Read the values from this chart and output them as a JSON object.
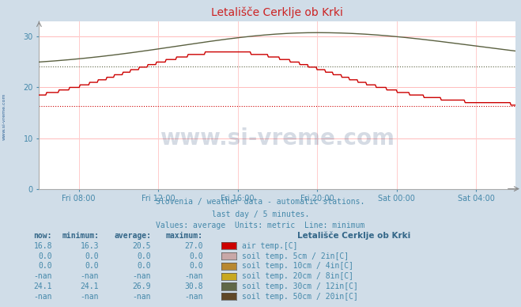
{
  "title": "Letališče Cerklje ob Krki",
  "background_color": "#d0dde8",
  "plot_bg_color": "#ffffff",
  "x_labels": [
    "Fri 08:00",
    "Fri 12:00",
    "Fri 16:00",
    "Fri 20:00",
    "Sat 00:00",
    "Sat 04:00"
  ],
  "y_ticks": [
    0,
    10,
    20,
    30
  ],
  "ylim": [
    0,
    33
  ],
  "xlim": [
    0,
    24
  ],
  "subtitle_lines": [
    "Slovenia / weather data - automatic stations.",
    "last day / 5 minutes.",
    "Values: average  Units: metric  Line: minimum"
  ],
  "legend_title": "Letališče Cerklje ob Krki",
  "legend_entries": [
    {
      "label": "air temp.[C]",
      "color": "#cc0000",
      "now": "16.8",
      "minimum": "16.3",
      "average": "20.5",
      "maximum": "27.0"
    },
    {
      "label": "soil temp. 5cm / 2in[C]",
      "color": "#c8a8a8",
      "now": "0.0",
      "minimum": "0.0",
      "average": "0.0",
      "maximum": "0.0"
    },
    {
      "label": "soil temp. 10cm / 4in[C]",
      "color": "#b88830",
      "now": "0.0",
      "minimum": "0.0",
      "average": "0.0",
      "maximum": "0.0"
    },
    {
      "label": "soil temp. 20cm / 8in[C]",
      "color": "#c8a820",
      "now": "-nan",
      "minimum": "-nan",
      "average": "-nan",
      "maximum": "-nan"
    },
    {
      "label": "soil temp. 30cm / 12in[C]",
      "color": "#606848",
      "now": "24.1",
      "minimum": "24.1",
      "average": "26.9",
      "maximum": "30.8"
    },
    {
      "label": "soil temp. 50cm / 20in[C]",
      "color": "#604828",
      "now": "-nan",
      "minimum": "-nan",
      "average": "-nan",
      "maximum": "-nan"
    }
  ],
  "air_temp_color": "#cc0000",
  "soil30_color": "#5a6040",
  "air_temp_min": 16.3,
  "soil30_min": 24.1,
  "watermark_text": "www.si-vreme.com",
  "watermark_color": "#1a3a6a",
  "watermark_alpha": 0.18,
  "text_color": "#4488aa",
  "header_color": "#336688"
}
